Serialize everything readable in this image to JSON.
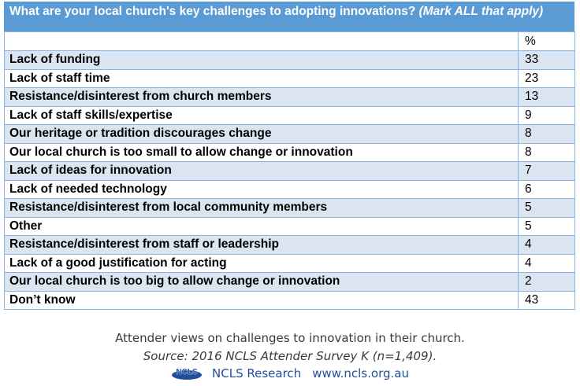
{
  "question": {
    "text": "What are your local church's key challenges to adopting innovations? ",
    "italic": "(Mark ALL that apply)"
  },
  "table": {
    "header_value": "%",
    "rows": [
      {
        "label": "Lack of funding",
        "value": "33"
      },
      {
        "label": "Lack of staff time",
        "value": "23"
      },
      {
        "label": "Resistance/disinterest from church members",
        "value": "13"
      },
      {
        "label": "Lack of staff skills/expertise",
        "value": "9"
      },
      {
        "label": "Our heritage or tradition discourages change",
        "value": "8"
      },
      {
        "label": "Our local church is too small to allow change or innovation",
        "value": "8"
      },
      {
        "label": "Lack of ideas for innovation",
        "value": "7"
      },
      {
        "label": "Lack of needed technology",
        "value": "6"
      },
      {
        "label": "Resistance/disinterest from local community members",
        "value": "5"
      },
      {
        "label": "Other",
        "value": "5"
      },
      {
        "label": "Resistance/disinterest from staff or leadership",
        "value": "4"
      },
      {
        "label": "Lack of a good justification for acting",
        "value": "4"
      },
      {
        "label": "Our local church is too big to allow change or innovation",
        "value": "2"
      },
      {
        "label": "Don’t know",
        "value": "43"
      }
    ]
  },
  "caption": "Attender views on challenges to innovation in their church.",
  "source": "Source: 2016 NCLS Attender Survey K (n=1,409).",
  "footer": {
    "logo_text": "NCLS",
    "org": "NCLS Research",
    "url": "www.ncls.org.au"
  },
  "colors": {
    "header_blue": "#5b9bd5",
    "row_alt": "#dbe5f1",
    "border": "#8db3e2",
    "footer_text": "#1f4e9b"
  }
}
